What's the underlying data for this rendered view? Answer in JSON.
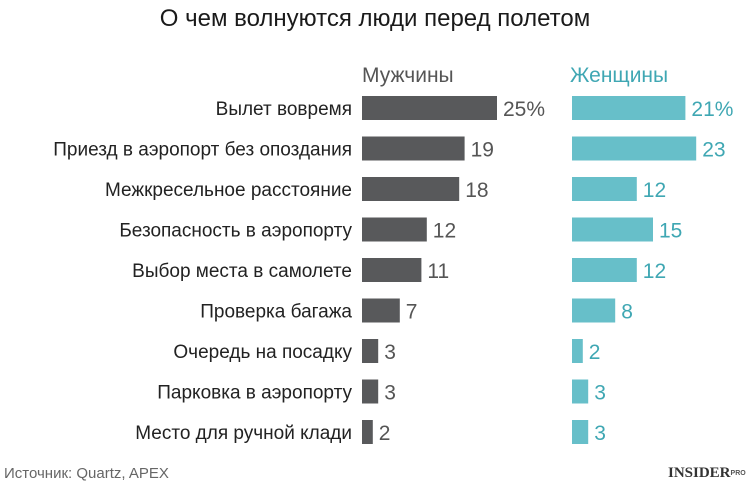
{
  "colors": {
    "men": "#58595b",
    "women": "#67bfc9",
    "men_label": "#555555",
    "women_label": "#3fa7b3",
    "text": "#222222"
  },
  "chart_data": {
    "type": "bar",
    "orientation": "horizontal",
    "title": "О чем волнуются люди перед полетом",
    "categories": [
      "Вылет вовремя",
      "Приезд в аэропорт без опоздания",
      "Межкресельное расстояние",
      "Безопасность в аэропорту",
      "Выбор места в самолете",
      "Проверка багажа",
      "Очередь на посадку",
      "Парковка в аэропорту",
      "Место для ручной клади"
    ],
    "series": [
      {
        "name": "Мужчины",
        "values": [
          25,
          19,
          18,
          12,
          11,
          7,
          3,
          3,
          2
        ],
        "labels": [
          "25%",
          "19",
          "18",
          "12",
          "11",
          "7",
          "3",
          "3",
          "2"
        ]
      },
      {
        "name": "Женщины",
        "values": [
          21,
          23,
          12,
          15,
          12,
          8,
          2,
          3,
          3
        ],
        "labels": [
          "21%",
          "23",
          "12",
          "15",
          "12",
          "8",
          "2",
          "3",
          "3"
        ]
      }
    ],
    "unit": "%",
    "grid": false,
    "legend": "column headers above each panel"
  },
  "footer": {
    "source": "Источник: Quartz, APEX",
    "brand": "INSIDER",
    "brand_sup": "PRO"
  }
}
